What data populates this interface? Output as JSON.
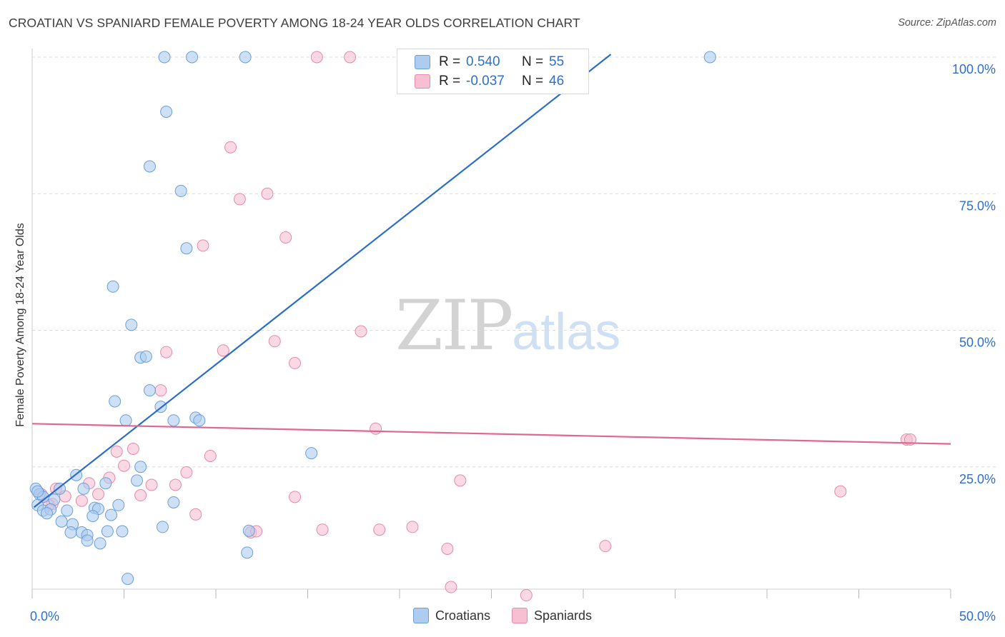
{
  "header": {
    "title": "CROATIAN VS SPANIARD FEMALE POVERTY AMONG 18-24 YEAR OLDS CORRELATION CHART",
    "source": "Source: ZipAtlas.com"
  },
  "watermark": {
    "zip": "ZIP",
    "atlas": "atlas"
  },
  "legend_box": {
    "rows": [
      {
        "r_label": "R =",
        "r_value": "0.540",
        "n_label": "N =",
        "n_value": "55"
      },
      {
        "r_label": "R =",
        "r_value": "-0.037",
        "n_label": "N =",
        "n_value": "46"
      }
    ]
  },
  "colors": {
    "croatians_fill": "#aecbf0",
    "croatians_stroke": "#6a9fd8",
    "croatians_line": "#2a6dcc",
    "spaniards_fill": "#f7bfd2",
    "spaniards_stroke": "#e58aa9",
    "spaniards_line": "#e0678e",
    "axis_text": "#2f6fcc",
    "grid": "#dcdcdc"
  },
  "chart_data": {
    "type": "scatter",
    "title": "CROATIAN VS SPANIARD FEMALE POVERTY AMONG 18-24 YEAR OLDS CORRELATION CHART",
    "xlabel": "",
    "ylabel": "Female Poverty Among 18-24 Year Olds",
    "xlim": [
      0,
      50
    ],
    "ylim": [
      0,
      102
    ],
    "x_tick_labels": [
      {
        "value": 0,
        "label": "0.0%"
      },
      {
        "value": 50,
        "label": "50.0%"
      }
    ],
    "y_tick_labels": [
      {
        "value": 25,
        "label": "25.0%"
      },
      {
        "value": 50,
        "label": "50.0%"
      },
      {
        "value": 75,
        "label": "75.0%"
      },
      {
        "value": 100,
        "label": "100.0%"
      }
    ],
    "grid": true,
    "legend_position": "bottom-center",
    "series": [
      {
        "name": "Croatians",
        "points": [
          [
            7.2,
            100
          ],
          [
            8.7,
            100
          ],
          [
            11.6,
            100
          ],
          [
            36.9,
            100
          ],
          [
            7.3,
            90
          ],
          [
            6.4,
            80
          ],
          [
            8.1,
            75.5
          ],
          [
            8.4,
            65
          ],
          [
            4.4,
            58
          ],
          [
            5.4,
            51
          ],
          [
            5.9,
            45
          ],
          [
            6.2,
            45.2
          ],
          [
            6.4,
            39
          ],
          [
            4.5,
            37
          ],
          [
            7.0,
            36
          ],
          [
            5.1,
            33.5
          ],
          [
            7.7,
            33.5
          ],
          [
            8.9,
            34
          ],
          [
            9.1,
            33.5
          ],
          [
            15.2,
            27.5
          ],
          [
            5.9,
            25
          ],
          [
            2.4,
            23.5
          ],
          [
            4.0,
            22
          ],
          [
            5.7,
            22.5
          ],
          [
            0.2,
            21
          ],
          [
            1.5,
            21
          ],
          [
            2.8,
            21
          ],
          [
            0.4,
            20
          ],
          [
            0.6,
            19.5
          ],
          [
            1.2,
            19
          ],
          [
            4.7,
            18
          ],
          [
            7.7,
            18.5
          ],
          [
            0.3,
            18
          ],
          [
            0.6,
            17
          ],
          [
            1.0,
            17.2
          ],
          [
            1.9,
            17
          ],
          [
            3.4,
            17.5
          ],
          [
            3.6,
            17.3
          ],
          [
            0.8,
            16.5
          ],
          [
            3.3,
            16
          ],
          [
            4.3,
            16.2
          ],
          [
            1.6,
            15
          ],
          [
            2.2,
            14.5
          ],
          [
            7.1,
            14
          ],
          [
            2.1,
            13
          ],
          [
            2.7,
            13
          ],
          [
            3.0,
            12.5
          ],
          [
            4.1,
            13.2
          ],
          [
            4.9,
            13.2
          ],
          [
            11.8,
            13.3
          ],
          [
            3.0,
            11.5
          ],
          [
            3.7,
            11
          ],
          [
            11.7,
            9.3
          ],
          [
            5.2,
            4.5
          ],
          [
            0.3,
            20.5
          ]
        ]
      },
      {
        "name": "Spaniards",
        "points": [
          [
            15.5,
            100
          ],
          [
            17.3,
            100
          ],
          [
            10.8,
            83.5
          ],
          [
            11.3,
            74
          ],
          [
            12.8,
            75
          ],
          [
            9.3,
            65.5
          ],
          [
            13.8,
            67
          ],
          [
            17.9,
            49.8
          ],
          [
            7.3,
            46
          ],
          [
            10.4,
            46.3
          ],
          [
            13.2,
            48
          ],
          [
            14.3,
            44
          ],
          [
            7.0,
            39
          ],
          [
            18.7,
            32
          ],
          [
            47.6,
            30
          ],
          [
            47.8,
            30
          ],
          [
            4.6,
            27.8
          ],
          [
            5.5,
            28.3
          ],
          [
            9.7,
            27
          ],
          [
            5.0,
            25.2
          ],
          [
            8.4,
            24
          ],
          [
            4.2,
            23
          ],
          [
            3.1,
            22
          ],
          [
            23.3,
            22.5
          ],
          [
            7.8,
            21.7
          ],
          [
            1.3,
            21
          ],
          [
            0.5,
            20
          ],
          [
            3.6,
            20
          ],
          [
            1.8,
            19.6
          ],
          [
            5.9,
            19.8
          ],
          [
            14.3,
            19.5
          ],
          [
            44.0,
            20.5
          ],
          [
            6.5,
            21.7
          ],
          [
            1.1,
            18.2
          ],
          [
            2.7,
            18.8
          ],
          [
            0.9,
            18
          ],
          [
            8.9,
            16.3
          ],
          [
            11.9,
            13
          ],
          [
            15.8,
            13.5
          ],
          [
            18.9,
            13.5
          ],
          [
            20.7,
            14
          ],
          [
            12.2,
            13.2
          ],
          [
            22.6,
            10
          ],
          [
            31.2,
            10.5
          ],
          [
            22.8,
            3
          ],
          [
            26.9,
            1.5
          ]
        ]
      }
    ],
    "trend_lines": [
      {
        "series": "Croatians",
        "x": [
          0.1,
          31.5
        ],
        "y": [
          17.6,
          100.5
        ]
      },
      {
        "series": "Spaniards",
        "x": [
          0.0,
          50.0
        ],
        "y": [
          32.9,
          29.2
        ]
      }
    ]
  },
  "bottom_legend": {
    "items": [
      {
        "label": "Croatians"
      },
      {
        "label": "Spaniards"
      }
    ]
  }
}
